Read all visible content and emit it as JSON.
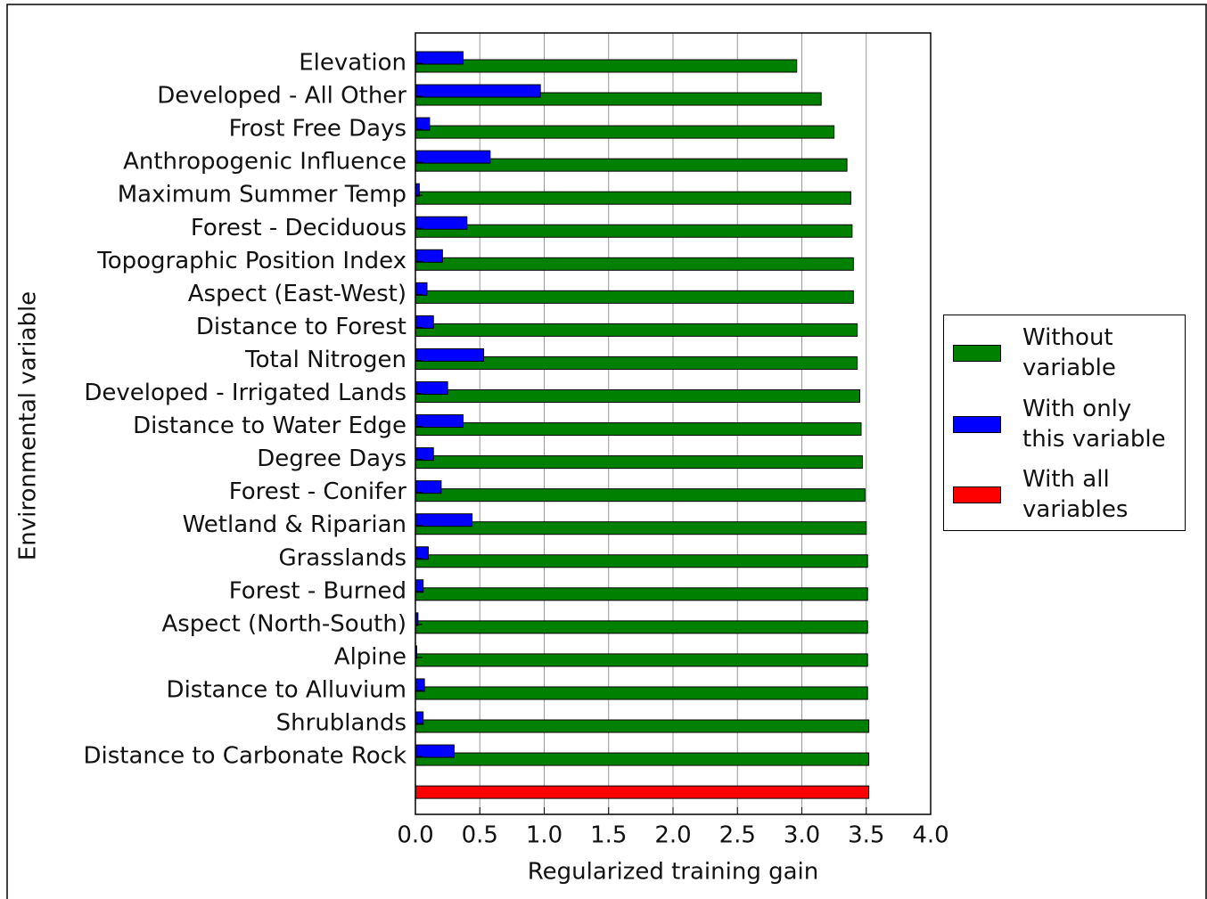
{
  "chart_data": {
    "type": "bar",
    "orientation": "horizontal",
    "xlabel": "Regularized training gain",
    "ylabel": "Environmental variable",
    "categories": [
      "Elevation",
      "Developed - All Other",
      "Frost Free Days",
      "Anthropogenic Influence",
      "Maximum Summer Temp",
      "Forest - Deciduous",
      "Topographic Position Index",
      "Aspect (East-West)",
      "Distance to Forest",
      "Total Nitrogen",
      "Developed - Irrigated Lands",
      "Distance to Water Edge",
      "Degree Days",
      "Forest - Conifer",
      "Wetland & Riparian",
      "Grasslands",
      "Forest - Burned",
      "Aspect (North-South)",
      "Alpine",
      "Distance to Alluvium",
      "Shrublands",
      "Distance to Carbonate Rock",
      null
    ],
    "series": [
      {
        "name": "Without variable",
        "color": "#008000",
        "values": [
          2.96,
          3.15,
          3.25,
          3.35,
          3.38,
          3.39,
          3.4,
          3.4,
          3.43,
          3.43,
          3.45,
          3.46,
          3.47,
          3.49,
          3.5,
          3.51,
          3.51,
          3.51,
          3.51,
          3.51,
          3.52,
          3.52,
          null
        ]
      },
      {
        "name": "With only this variable",
        "color": "#0000ff",
        "values": [
          0.37,
          0.97,
          0.11,
          0.58,
          0.03,
          0.4,
          0.21,
          0.09,
          0.14,
          0.53,
          0.25,
          0.37,
          0.14,
          0.2,
          0.44,
          0.1,
          0.06,
          0.02,
          0.01,
          0.07,
          0.06,
          0.3,
          null
        ]
      },
      {
        "name": "With all variables",
        "color": "#ff0000",
        "values": [
          null,
          null,
          null,
          null,
          null,
          null,
          null,
          null,
          null,
          null,
          null,
          null,
          null,
          null,
          null,
          null,
          null,
          null,
          null,
          null,
          null,
          null,
          3.52
        ]
      }
    ],
    "xlim": [
      0,
      4
    ],
    "xticks": [
      {
        "value": 0,
        "label": "0.0"
      },
      {
        "value": 0.5,
        "label": "0.5"
      },
      {
        "value": 1,
        "label": "1.0"
      },
      {
        "value": 1.5,
        "label": "1.5"
      },
      {
        "value": 2,
        "label": "2.0"
      },
      {
        "value": 2.5,
        "label": "2.5"
      },
      {
        "value": 3,
        "label": "3.0"
      },
      {
        "value": 3.5,
        "label": "3.5"
      },
      {
        "value": 4,
        "label": "4.0"
      }
    ],
    "grid": true,
    "legend": "right"
  }
}
